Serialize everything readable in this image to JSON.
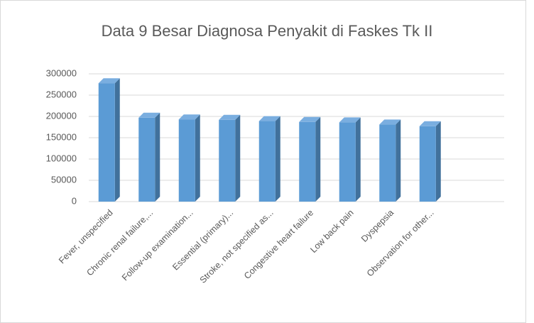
{
  "chart_data": {
    "type": "bar3d",
    "title": "Data 9 Besar Diagnosa Penyakit di Faskes Tk II",
    "categories": [
      "Fever, unspecified",
      "Chronic renal failure,...",
      "Follow-up examination...",
      "Essential (primary)...",
      "Stroke, not specified as...",
      "Congestive heart failure",
      "Low back pain",
      "Dyspepsia",
      "Observation for other..."
    ],
    "values": [
      278000,
      197000,
      193000,
      192000,
      189000,
      187000,
      186000,
      181000,
      177000
    ],
    "color": "#5b9bd5",
    "ylim": [
      0,
      300000
    ],
    "yticks": [
      0,
      50000,
      100000,
      150000,
      200000,
      250000,
      300000
    ],
    "grid": true
  }
}
